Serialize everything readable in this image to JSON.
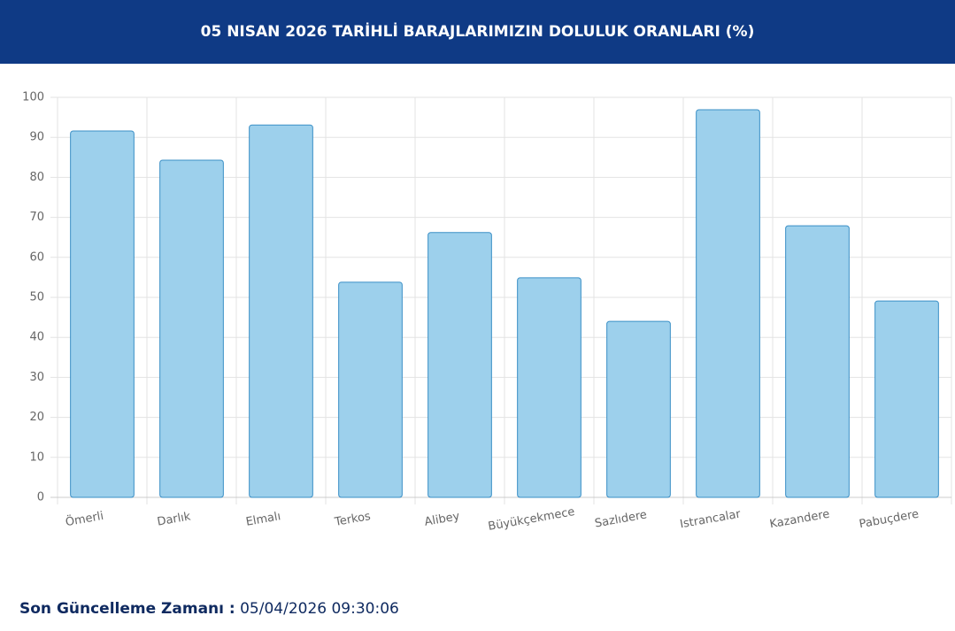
{
  "chart_data": {
    "type": "bar",
    "title": "05 NISAN 2026 TARİHLİ BARAJLARIMIZIN DOLULUK ORANLARI (%)",
    "categories": [
      "Ömerli",
      "Darlık",
      "Elmalı",
      "Terkos",
      "Alibey",
      "Büyükçekmece",
      "Sazlıdere",
      "Istrancalar",
      "Kazandere",
      "Pabuçdere"
    ],
    "values": [
      91.6,
      84.3,
      93.1,
      53.8,
      66.2,
      54.9,
      44.0,
      96.9,
      67.9,
      49.1
    ],
    "color": "#9dd0ec",
    "border_color": "#3a8fc6",
    "ylim": [
      0,
      100
    ],
    "yticks": [
      0,
      10,
      20,
      30,
      40,
      50,
      60,
      70,
      80,
      90,
      100
    ],
    "grid": true
  },
  "footer": {
    "label": "Son Güncelleme Zamanı :",
    "value": "05/04/2026 09:30:06"
  }
}
